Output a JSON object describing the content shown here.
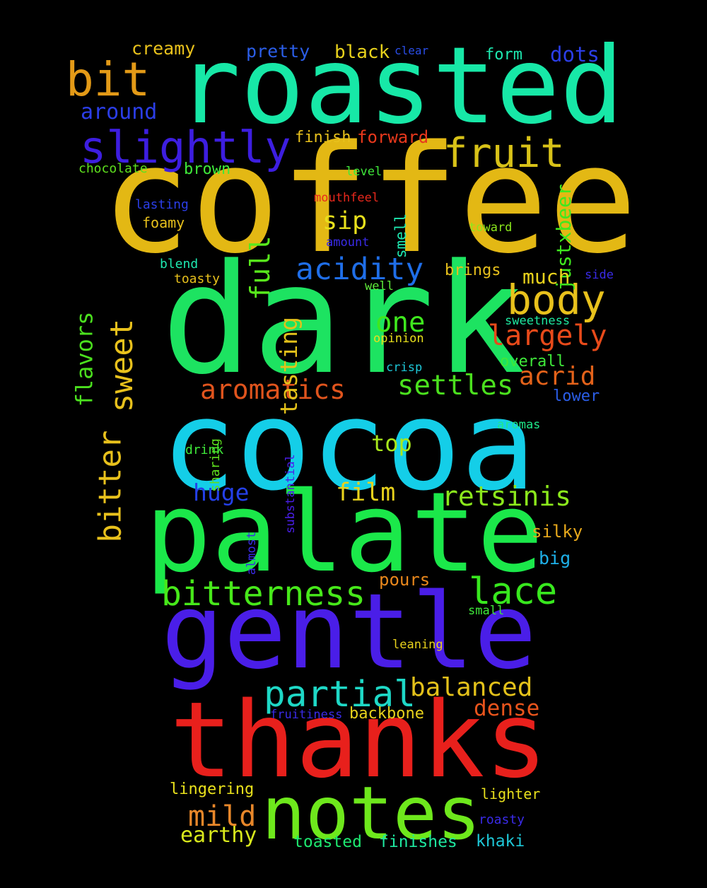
{
  "words": [
    {
      "t": "coffee",
      "c": "#e3b814"
    },
    {
      "t": "dark",
      "c": "#1de361"
    },
    {
      "t": "cocoa",
      "c": "#14cee8"
    },
    {
      "t": "palate",
      "c": "#1be84a"
    },
    {
      "t": "gentle",
      "c": "#4a1ee8"
    },
    {
      "t": "thanks",
      "c": "#e8201c"
    },
    {
      "t": "roasted",
      "c": "#17e8a7"
    },
    {
      "t": "notes",
      "c": "#6ee81c"
    },
    {
      "t": "slightly",
      "c": "#3d1ee0"
    },
    {
      "t": "bit",
      "c": "#e39a17"
    },
    {
      "t": "fruit",
      "c": "#d8c218"
    },
    {
      "t": "body",
      "c": "#e8c11c"
    },
    {
      "t": "acidity",
      "c": "#1f6ee8"
    },
    {
      "t": "largely",
      "c": "#e84a1a"
    },
    {
      "t": "aromatics",
      "c": "#e0541d"
    },
    {
      "t": "settles",
      "c": "#4be01e"
    },
    {
      "t": "bitterness",
      "c": "#47e81a"
    },
    {
      "t": "lace",
      "c": "#38e81e"
    },
    {
      "t": "partial",
      "c": "#1ed8c6"
    },
    {
      "t": "balanced",
      "c": "#e3c11a"
    },
    {
      "t": "retsinis",
      "c": "#8be81c"
    },
    {
      "t": "one",
      "c": "#3fe81e"
    },
    {
      "t": "acrid",
      "c": "#e3621a"
    },
    {
      "t": "mild",
      "c": "#e8872a"
    },
    {
      "t": "huge",
      "c": "#2440e8"
    },
    {
      "t": "film",
      "c": "#e8d21c"
    },
    {
      "t": "sip",
      "c": "#e8e01c"
    },
    {
      "t": "full",
      "c": "#58e81c"
    },
    {
      "t": "dense",
      "c": "#e8541c"
    },
    {
      "t": "top",
      "c": "#a8e81c"
    },
    {
      "t": "tasting",
      "c": "#e3c11a"
    },
    {
      "t": "earthy",
      "c": "#d8e81c"
    },
    {
      "t": "bitter",
      "c": "#e8c11c"
    },
    {
      "t": "sweet",
      "c": "#e8c11c"
    },
    {
      "t": "flavors",
      "c": "#4be01e"
    },
    {
      "t": "justxbeer",
      "c": "#3fe81e"
    },
    {
      "t": "creamy",
      "c": "#e8c11c"
    },
    {
      "t": "pretty",
      "c": "#2b5ee8"
    },
    {
      "t": "black",
      "c": "#e8d21c"
    },
    {
      "t": "clear",
      "c": "#2a4ee8"
    },
    {
      "t": "form",
      "c": "#1ee8b0"
    },
    {
      "t": "dots",
      "c": "#2b3ee8"
    },
    {
      "t": "around",
      "c": "#2b3ee8"
    },
    {
      "t": "finish",
      "c": "#e8c11c"
    },
    {
      "t": "forward",
      "c": "#e8381c"
    },
    {
      "t": "brown",
      "c": "#3fe83a"
    },
    {
      "t": "chocolate",
      "c": "#5ee01e"
    },
    {
      "t": "level",
      "c": "#3fe83a"
    },
    {
      "t": "lasting",
      "c": "#2b3ee8"
    },
    {
      "t": "mouthfeel",
      "c": "#e8281c"
    },
    {
      "t": "smell",
      "c": "#1ee8b0"
    },
    {
      "t": "foamy",
      "c": "#e8c11c"
    },
    {
      "t": "toward",
      "c": "#8be81c"
    },
    {
      "t": "amount",
      "c": "#3a2be8"
    },
    {
      "t": "brings",
      "c": "#e8c11c"
    },
    {
      "t": "blend",
      "c": "#1ee8b0"
    },
    {
      "t": "toasty",
      "c": "#e8c11c"
    },
    {
      "t": "much",
      "c": "#e8d21c"
    },
    {
      "t": "side",
      "c": "#3a2be8"
    },
    {
      "t": "well",
      "c": "#5ee83a"
    },
    {
      "t": "sweetness",
      "c": "#1ee8a0"
    },
    {
      "t": "opinion",
      "c": "#e8e01c"
    },
    {
      "t": "overall",
      "c": "#3fe83a"
    },
    {
      "t": "crisp",
      "c": "#1ec8d8"
    },
    {
      "t": "lower",
      "c": "#2b5ee8"
    },
    {
      "t": "aromas",
      "c": "#1ee88a"
    },
    {
      "t": "sharing",
      "c": "#5ee01e"
    },
    {
      "t": "drink",
      "c": "#3fe83a"
    },
    {
      "t": "substantial",
      "c": "#4a1ee8"
    },
    {
      "t": "silky",
      "c": "#e8a91c"
    },
    {
      "t": "almost",
      "c": "#3a2be8"
    },
    {
      "t": "big",
      "c": "#1eb0e8"
    },
    {
      "t": "pours",
      "c": "#e8871c"
    },
    {
      "t": "small",
      "c": "#3fe83a"
    },
    {
      "t": "leaning",
      "c": "#e8d21c"
    },
    {
      "t": "fruitiness",
      "c": "#3a2be8"
    },
    {
      "t": "backbone",
      "c": "#e8d21c"
    },
    {
      "t": "lingering",
      "c": "#e8e01c"
    },
    {
      "t": "lighter",
      "c": "#e8e01c"
    },
    {
      "t": "roasty",
      "c": "#3a2be8"
    },
    {
      "t": "toasted",
      "c": "#1ee870"
    },
    {
      "t": "finishes",
      "c": "#1ee8a0"
    },
    {
      "t": "khaki",
      "c": "#1ec8d8"
    }
  ]
}
